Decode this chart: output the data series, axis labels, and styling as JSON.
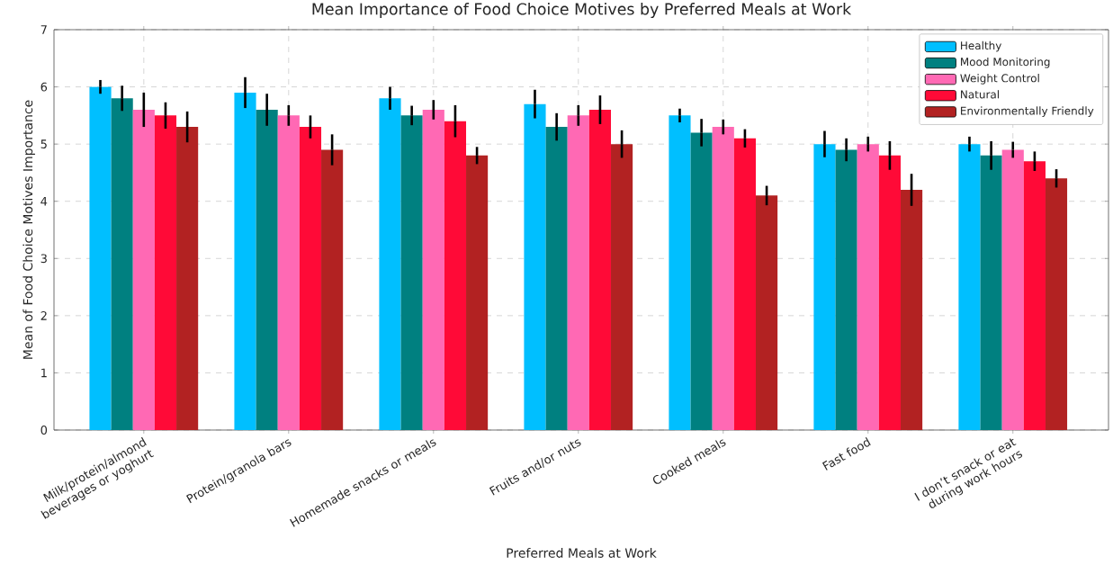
{
  "chart_data": {
    "type": "bar",
    "title": "Mean Importance of Food Choice Motives by Preferred Meals at Work",
    "xlabel": "Preferred Meals at Work",
    "ylabel": "Mean of Food Choice Motives Importance",
    "categories": [
      "Milk/protein/almond beverages or yoghurt",
      "Protein/granola bars",
      "Homemade snacks or meals",
      "Fruits and/or nuts",
      "Cooked meals",
      "Fast food",
      "I don’t snack or eat during work hours"
    ],
    "series": [
      {
        "name": "Healthy",
        "color": "#00bfff",
        "values": [
          6.0,
          5.9,
          5.8,
          5.7,
          5.5,
          5.0,
          5.0
        ],
        "errors": [
          0.12,
          0.27,
          0.2,
          0.25,
          0.12,
          0.23,
          0.13
        ]
      },
      {
        "name": "Mood Monitoring",
        "color": "#008080",
        "values": [
          5.8,
          5.6,
          5.5,
          5.3,
          5.2,
          4.9,
          4.8
        ],
        "errors": [
          0.22,
          0.28,
          0.17,
          0.24,
          0.24,
          0.2,
          0.25
        ]
      },
      {
        "name": "Weight Control",
        "color": "#ff69b4",
        "values": [
          5.6,
          5.5,
          5.6,
          5.5,
          5.3,
          5.0,
          4.9
        ],
        "errors": [
          0.3,
          0.18,
          0.17,
          0.18,
          0.13,
          0.13,
          0.14
        ]
      },
      {
        "name": "Natural",
        "color": "#ff0a37",
        "values": [
          5.5,
          5.3,
          5.4,
          5.6,
          5.1,
          4.8,
          4.7
        ],
        "errors": [
          0.23,
          0.2,
          0.28,
          0.25,
          0.16,
          0.25,
          0.17
        ]
      },
      {
        "name": "Environmentally Friendly",
        "color": "#b22222",
        "values": [
          5.3,
          4.9,
          4.8,
          5.0,
          4.1,
          4.2,
          4.4
        ],
        "errors": [
          0.27,
          0.27,
          0.15,
          0.24,
          0.17,
          0.28,
          0.16
        ]
      }
    ],
    "ylim": [
      0,
      7
    ],
    "yticks": [
      0,
      1,
      2,
      3,
      4,
      5,
      6,
      7
    ],
    "grid": true,
    "legend": "top right"
  }
}
